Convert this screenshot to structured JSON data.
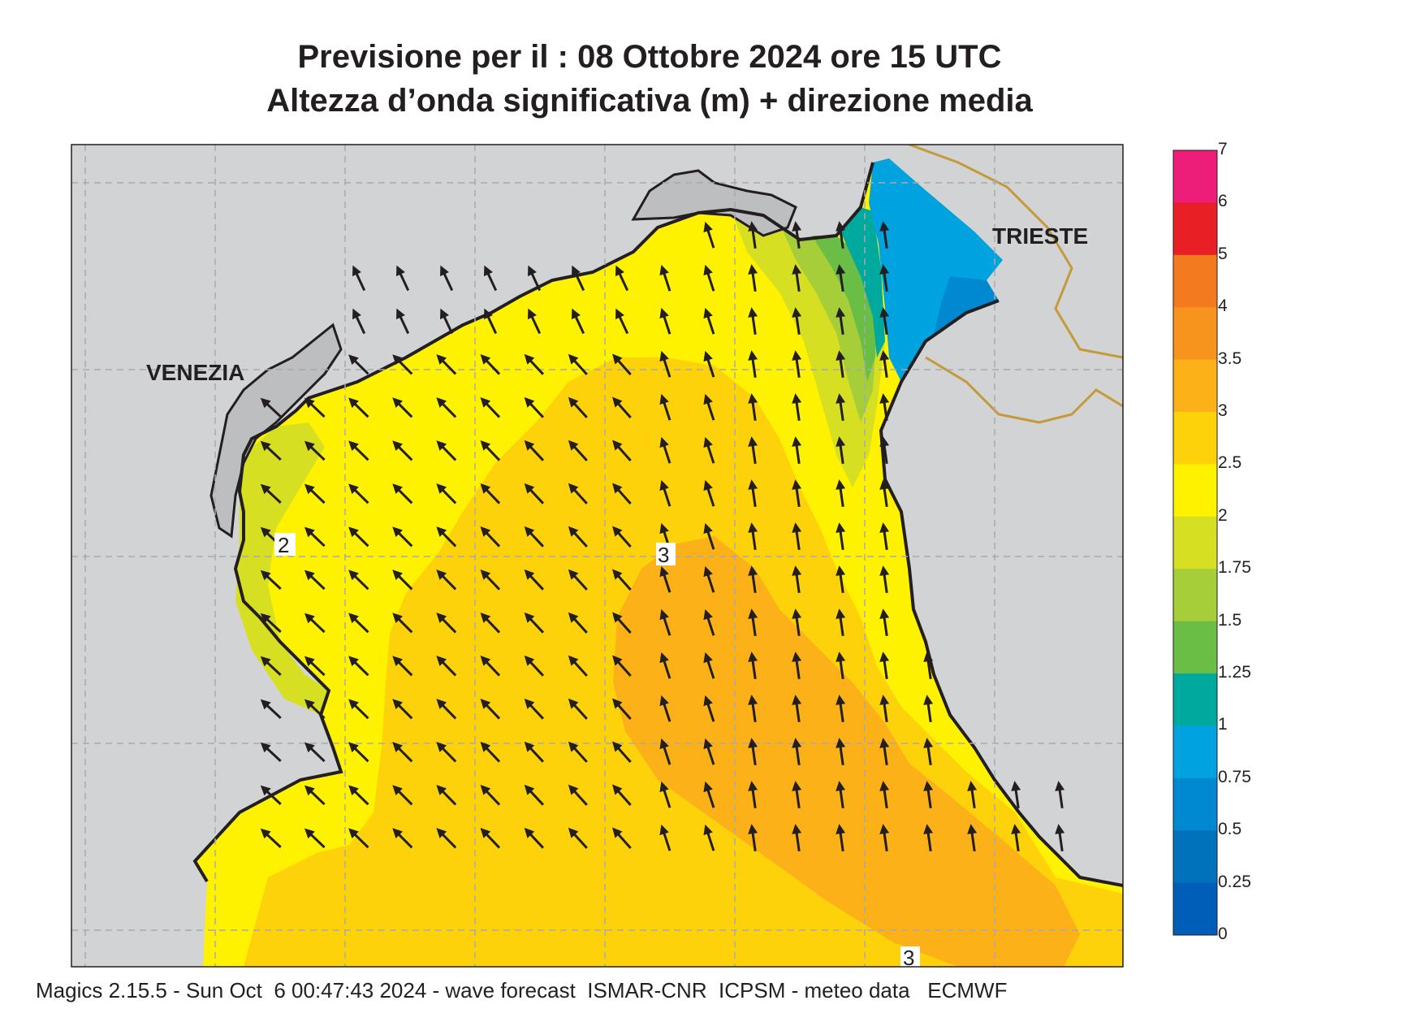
{
  "title_line1": "Previsione per il  :  08  Ottobre  2024   ore 15 UTC",
  "title_line2": "Altezza d’onda significativa (m) + direzione media",
  "footer": "Magics 2.15.5 - Sun Oct  6 00:47:43 2024 - wave forecast  ISMAR-CNR  ICPSM - meteo data   ECMWF",
  "places": {
    "venezia": "VENEZIA",
    "trieste": "TRIESTE"
  },
  "contour_labels": {
    "c2": "2",
    "c3a": "3",
    "c3b": "3"
  },
  "legend": {
    "labels": [
      "7",
      "6",
      "5",
      "4",
      "3.5",
      "3",
      "2.5",
      "2",
      "1.75",
      "1.5",
      "1.25",
      "1",
      "0.75",
      "0.5",
      "0.25",
      "0"
    ],
    "colors": [
      "#ec1e79",
      "#e82025",
      "#f47a20",
      "#f7941d",
      "#fbb117",
      "#fdd20a",
      "#fff200",
      "#d7df23",
      "#a6ce39",
      "#6abd45",
      "#00a99d",
      "#00a3e0",
      "#0088d1",
      "#0072bc",
      "#005eb8"
    ]
  },
  "colors": {
    "land": "#d1d3d4",
    "lagoon": "#bcbec0",
    "coast": "#231f20",
    "border": "#c49a3a",
    "grid": "#a7a9ac"
  }
}
